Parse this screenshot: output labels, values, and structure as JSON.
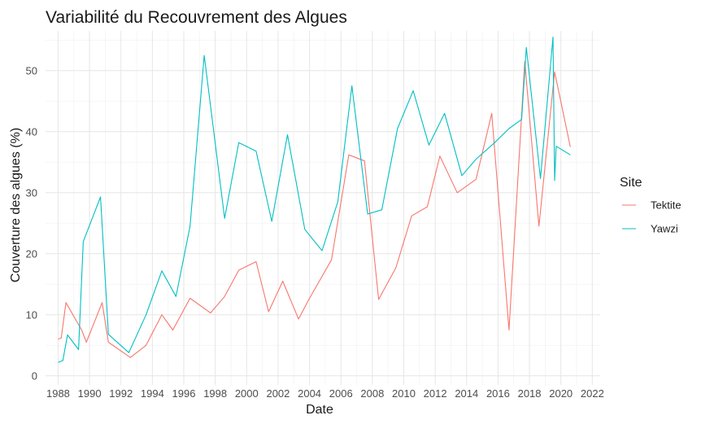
{
  "chart_data": {
    "type": "line",
    "title": "Variabilité du Recouvrement des Algues",
    "xlabel": "Date",
    "ylabel": "Couverture des algues (%)",
    "xlim": [
      1987.2,
      2022.5
    ],
    "ylim": [
      -1.5,
      56.5
    ],
    "x_ticks": [
      "1988",
      "1990",
      "1992",
      "1994",
      "1996",
      "1998",
      "2000",
      "2002",
      "2004",
      "2006",
      "2008",
      "2010",
      "2012",
      "2014",
      "2016",
      "2018",
      "2020",
      "2022"
    ],
    "y_ticks": [
      "0",
      "10",
      "20",
      "30",
      "40",
      "50"
    ],
    "grid": true,
    "legend": {
      "title": "Site",
      "position": "right"
    },
    "series": [
      {
        "name": "Tektite",
        "color": "#F8766D",
        "x": [
          1988.0,
          1988.2,
          1988.5,
          1989.5,
          1989.8,
          1990.8,
          1991.2,
          1992.6,
          1993.6,
          1994.6,
          1995.3,
          1996.4,
          1997.7,
          1998.6,
          1999.5,
          2000.6,
          2001.4,
          2002.3,
          2003.3,
          2004.0,
          2005.4,
          2006.5,
          2007.5,
          2008.4,
          2009.5,
          2010.5,
          2011.5,
          2012.3,
          2013.4,
          2014.6,
          2015.6,
          2016.7,
          2017.7,
          2018.6,
          2019.6,
          2020.6
        ],
        "y": [
          6.0,
          6.2,
          12.0,
          7.5,
          5.5,
          12.0,
          5.5,
          3.0,
          5.0,
          10.0,
          7.5,
          12.7,
          10.3,
          13.0,
          17.3,
          18.7,
          10.5,
          15.5,
          9.3,
          12.7,
          19.0,
          36.2,
          35.2,
          12.5,
          17.7,
          26.2,
          27.7,
          36.0,
          30.0,
          32.2,
          43.0,
          7.5,
          51.5,
          24.5,
          49.8,
          37.5
        ]
      },
      {
        "name": "Yawzi",
        "color": "#00BFC4",
        "x": [
          1988.0,
          1988.3,
          1988.6,
          1989.3,
          1989.6,
          1990.7,
          1991.2,
          1992.5,
          1993.6,
          1994.6,
          1995.5,
          1996.4,
          1997.3,
          1998.6,
          1999.5,
          2000.6,
          2001.6,
          2002.6,
          2003.7,
          2004.8,
          2005.8,
          2006.7,
          2007.7,
          2008.6,
          2009.6,
          2010.6,
          2011.6,
          2012.6,
          2013.7,
          2014.6,
          2015.7,
          2016.7,
          2017.5,
          2017.8,
          2018.7,
          2019.5,
          2019.6,
          2019.7,
          2020.6
        ],
        "y": [
          2.2,
          2.5,
          6.7,
          4.3,
          22.0,
          29.3,
          6.8,
          3.8,
          10.0,
          17.2,
          13.0,
          24.5,
          52.5,
          25.8,
          38.2,
          36.8,
          25.3,
          39.5,
          24.0,
          20.5,
          28.5,
          47.5,
          26.5,
          27.2,
          40.5,
          46.7,
          37.8,
          43.0,
          32.8,
          35.5,
          38.0,
          40.5,
          42.0,
          53.8,
          32.3,
          55.5,
          32.0,
          37.6,
          36.2
        ]
      }
    ]
  }
}
